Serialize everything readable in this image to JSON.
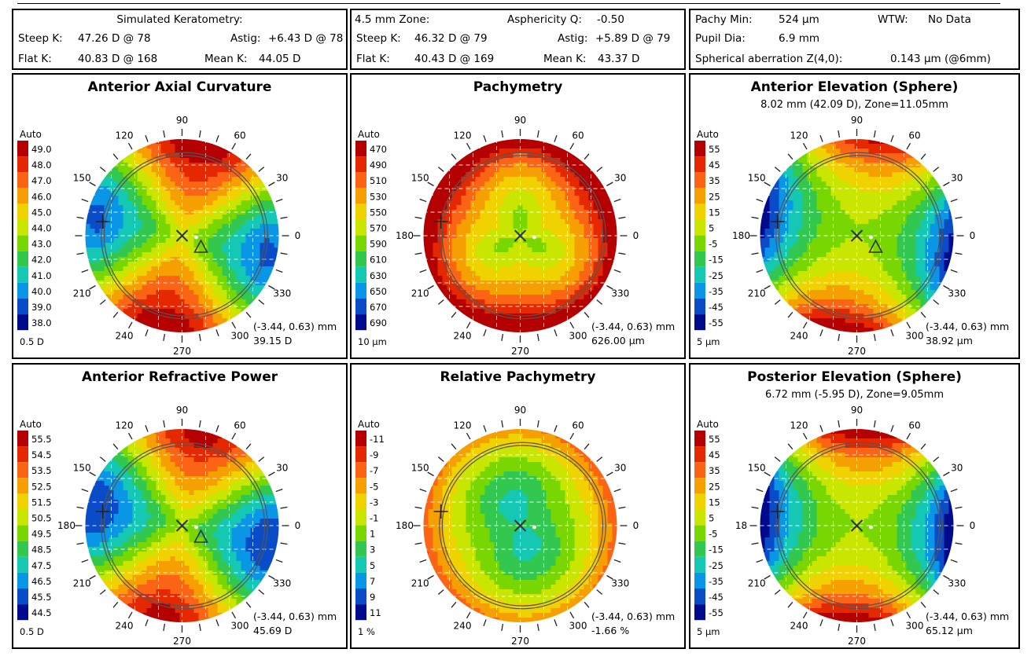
{
  "info": {
    "simk": {
      "title": "Simulated Keratometry:",
      "steep_label": "Steep K:",
      "steep_value": "47.26 D @ 78",
      "astig_label": "Astig:",
      "astig_value": "+6.43 D @ 78",
      "flat_label": "Flat K:",
      "flat_value": "40.83 D @ 168",
      "mean_label": "Mean K:",
      "mean_value": "44.05 D"
    },
    "zone": {
      "title": "4.5 mm Zone:",
      "asph_label": "Asphericity Q:",
      "asph_value": "-0.50",
      "steep_label": "Steep K:",
      "steep_value": "46.32 D @ 79",
      "astig_label": "Astig:",
      "astig_value": "+5.89 D @ 79",
      "flat_label": "Flat K:",
      "flat_value": "40.43 D @ 169",
      "mean_label": "Mean K:",
      "mean_value": "43.37 D"
    },
    "pachy": {
      "min_label": "Pachy Min:",
      "min_value": "524 µm",
      "wtw_label": "WTW:",
      "wtw_value": "No Data",
      "pupil_label": "Pupil Dia:",
      "pupil_value": "6.9 mm",
      "sa_label": "Spherical aberration Z(4,0):",
      "sa_value": "0.143 µm (@6mm)"
    }
  },
  "chart_data": [
    {
      "type": "heatmap",
      "title": "Anterior Axial Curvature",
      "subtitle": "",
      "scale_header": "Auto",
      "scale_values": [
        "49.0",
        "48.0",
        "47.0",
        "46.0",
        "45.0",
        "44.0",
        "43.0",
        "42.0",
        "41.0",
        "40.0",
        "39.0",
        "38.0"
      ],
      "scale_colors": [
        "#b40000",
        "#e62800",
        "#fa6414",
        "#f5a000",
        "#f0d200",
        "#c8e600",
        "#78d700",
        "#32c850",
        "#14c8b4",
        "#0a96e6",
        "#0a4bc8",
        "#000a8c"
      ],
      "step_label": "0.5 D",
      "angle_labels": [
        "90",
        "60",
        "30",
        "0",
        "330",
        "300",
        "270",
        "240",
        "210",
        "150",
        "120"
      ],
      "coord_label": "(-3.44, 0.63) mm",
      "value_label": "39.15 D",
      "pattern": "axial",
      "mean_level": 0.55
    },
    {
      "type": "heatmap",
      "title": "Pachymetry",
      "subtitle": "",
      "scale_header": "Auto",
      "scale_values": [
        "470",
        "490",
        "510",
        "530",
        "550",
        "570",
        "590",
        "610",
        "630",
        "650",
        "670",
        "690"
      ],
      "scale_colors": [
        "#b40000",
        "#e62800",
        "#fa6414",
        "#f5a000",
        "#f0d200",
        "#c8e600",
        "#78d700",
        "#32c850",
        "#14c8b4",
        "#0a96e6",
        "#0a4bc8",
        "#000a8c"
      ],
      "step_label": "10 µm",
      "angle_labels": [
        "90",
        "60",
        "30",
        "0",
        "330",
        "300",
        "270",
        "240",
        "210",
        "150",
        "120",
        "180"
      ],
      "coord_label": "(-3.44, 0.63) mm",
      "value_label": "626.00 µm",
      "pattern": "pachy",
      "mean_level": 0.7
    },
    {
      "type": "heatmap",
      "title": "Anterior Elevation (Sphere)",
      "subtitle": "8.02 mm (42.09 D), Zone=11.05mm",
      "scale_header": "Auto",
      "scale_values": [
        "55",
        "45",
        "35",
        "25",
        "15",
        "5",
        "-5",
        "-15",
        "-25",
        "-35",
        "-45",
        "-55"
      ],
      "scale_colors": [
        "#b40000",
        "#e62800",
        "#fa6414",
        "#f5a000",
        "#f0d200",
        "#c8e600",
        "#78d700",
        "#32c850",
        "#14c8b4",
        "#0a96e6",
        "#0a4bc8",
        "#000a8c"
      ],
      "step_label": "5 µm",
      "angle_labels": [
        "90",
        "60",
        "30",
        "0",
        "330",
        "300",
        "270",
        "240",
        "210",
        "150",
        "120",
        "180"
      ],
      "coord_label": "(-3.44, 0.63) mm",
      "value_label": "38.92 µm",
      "pattern": "elev",
      "mean_level": 0.5
    },
    {
      "type": "heatmap",
      "title": "Anterior Refractive Power",
      "subtitle": "",
      "scale_header": "Auto",
      "scale_values": [
        "55.5",
        "54.5",
        "53.5",
        "52.5",
        "51.5",
        "50.5",
        "49.5",
        "48.5",
        "47.5",
        "46.5",
        "45.5",
        "44.5"
      ],
      "scale_colors": [
        "#b40000",
        "#e62800",
        "#fa6414",
        "#f5a000",
        "#f0d200",
        "#c8e600",
        "#78d700",
        "#32c850",
        "#14c8b4",
        "#0a96e6",
        "#0a4bc8",
        "#000a8c"
      ],
      "step_label": "0.5 D",
      "angle_labels": [
        "90",
        "60",
        "30",
        "0",
        "330",
        "300",
        "270",
        "240",
        "210",
        "150",
        "120",
        "180"
      ],
      "coord_label": "(-3.44, 0.63) mm",
      "value_label": "45.69 D",
      "pattern": "axial",
      "mean_level": 0.5
    },
    {
      "type": "heatmap",
      "title": "Relative Pachymetry",
      "subtitle": "",
      "scale_header": "Auto",
      "scale_values": [
        "-11",
        "-9",
        "-7",
        "-5",
        "-3",
        "-1",
        "1",
        "3",
        "5",
        "7",
        "9",
        "11"
      ],
      "scale_colors": [
        "#b40000",
        "#e62800",
        "#fa6414",
        "#f5a000",
        "#f0d200",
        "#c8e600",
        "#78d700",
        "#32c850",
        "#14c8b4",
        "#0a96e6",
        "#0a4bc8",
        "#000a8c"
      ],
      "step_label": "1 %",
      "angle_labels": [
        "90",
        "60",
        "30",
        "0",
        "330",
        "300",
        "270",
        "240",
        "210",
        "150",
        "120",
        "180"
      ],
      "coord_label": "(-3.44, 0.63) mm",
      "value_label": "-1.66 %",
      "pattern": "relpachy",
      "mean_level": 0.4
    },
    {
      "type": "heatmap",
      "title": "Posterior Elevation (Sphere)",
      "subtitle": "6.72 mm (-5.95 D), Zone=9.05mm",
      "scale_header": "Auto",
      "scale_values": [
        "55",
        "45",
        "35",
        "25",
        "15",
        "5",
        "-5",
        "-15",
        "-25",
        "-35",
        "-45",
        "-55"
      ],
      "scale_colors": [
        "#b40000",
        "#e62800",
        "#fa6414",
        "#f5a000",
        "#f0d200",
        "#c8e600",
        "#78d700",
        "#32c850",
        "#14c8b4",
        "#0a96e6",
        "#0a4bc8",
        "#000a8c"
      ],
      "step_label": "5 µm",
      "angle_labels": [
        "90",
        "60",
        "30",
        "0",
        "330",
        "300",
        "270",
        "240",
        "210",
        "150",
        "120",
        "18"
      ],
      "coord_label": "(-3.44, 0.63) mm",
      "value_label": "65.12 µm",
      "pattern": "post",
      "mean_level": 0.5
    }
  ]
}
